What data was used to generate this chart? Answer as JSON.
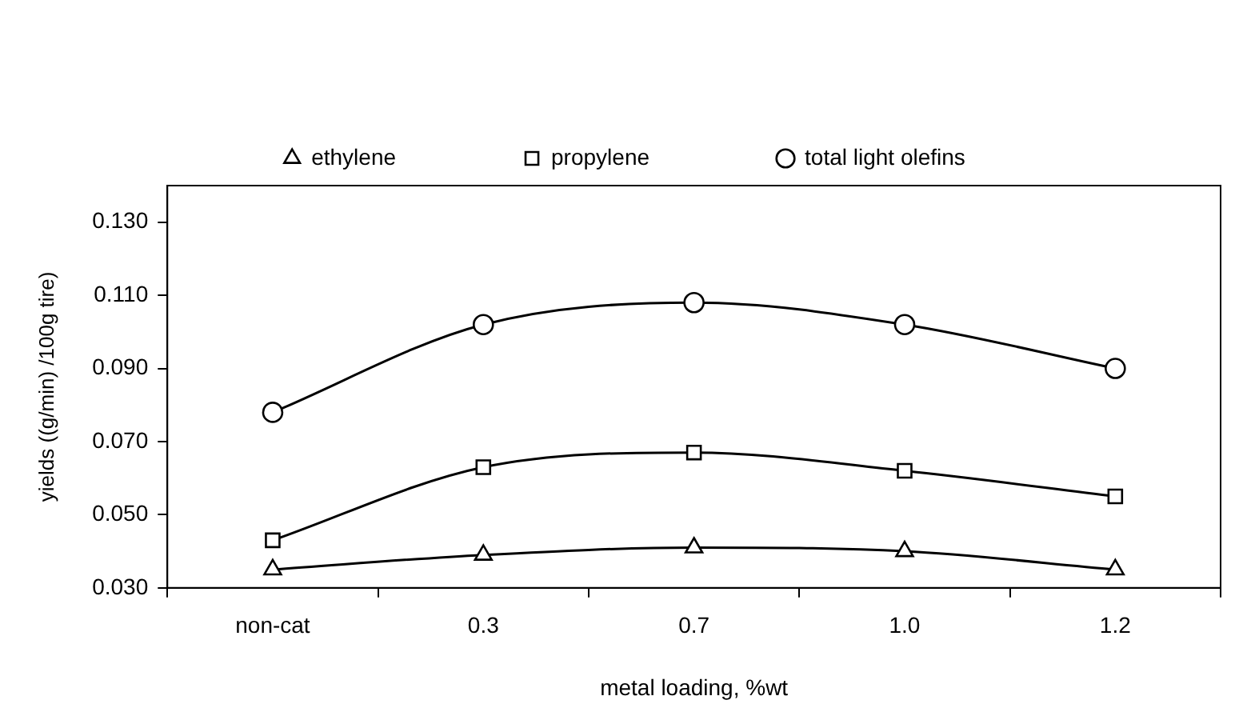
{
  "chart_data": {
    "type": "line",
    "xlabel": "metal loading, %wt",
    "ylabel": "yields ((g/min) /100g tire)",
    "categories": [
      "non-cat",
      "0.3",
      "0.7",
      "1.0",
      "1.2"
    ],
    "series": [
      {
        "name": "ethylene",
        "color": "#000000",
        "marker": "triangle",
        "values": [
          0.035,
          0.039,
          0.041,
          0.04,
          0.035
        ]
      },
      {
        "name": "propylene",
        "color": "#000000",
        "marker": "square",
        "values": [
          0.043,
          0.063,
          0.067,
          0.062,
          0.055
        ]
      },
      {
        "name": "total light olefins",
        "color": "#000000",
        "marker": "circle",
        "values": [
          0.078,
          0.102,
          0.108,
          0.102,
          0.09
        ]
      }
    ],
    "ylim": [
      0.03,
      0.14
    ],
    "yticks": [
      {
        "value": 0.03,
        "label": "0.030"
      },
      {
        "value": 0.05,
        "label": "0.050"
      },
      {
        "value": 0.07,
        "label": "0.070"
      },
      {
        "value": 0.09,
        "label": "0.090"
      },
      {
        "value": 0.11,
        "label": "0.110"
      },
      {
        "value": 0.13,
        "label": "0.130"
      }
    ],
    "grid": false,
    "legend": "top",
    "line_style": "solid"
  }
}
